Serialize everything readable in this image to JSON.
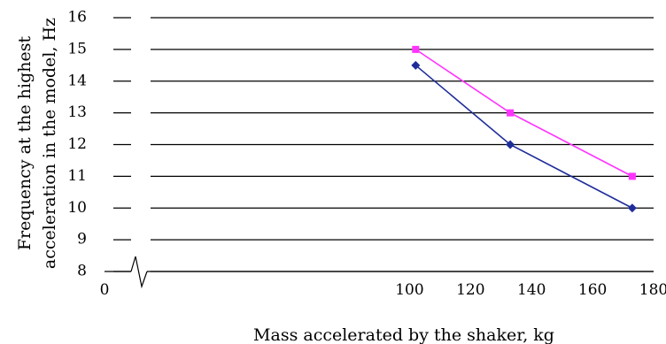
{
  "chart_data": {
    "type": "line",
    "title": "",
    "xlabel": "Mass accelerated by the shaker, kg",
    "ylabel_line1": "Frequency at the highest",
    "ylabel_line2": "acceleration in the model, Hz",
    "xlim": [
      0,
      180
    ],
    "ylim": [
      8,
      16
    ],
    "x_ticks": [
      0,
      100,
      120,
      140,
      160,
      180
    ],
    "y_ticks": [
      8,
      9,
      10,
      11,
      12,
      13,
      14,
      15,
      16
    ],
    "x_tick_labels": [
      "0",
      "100",
      "120",
      "140",
      "160",
      "180"
    ],
    "y_tick_labels": [
      "8",
      "9",
      "10",
      "11",
      "12",
      "13",
      "14",
      "15",
      "16"
    ],
    "x_axis_break": true,
    "grid": "horizontal",
    "legend": "none",
    "series": [
      {
        "color": "#ff33ff",
        "marker": "square",
        "x": [
          102,
          133,
          173
        ],
        "y": [
          15,
          13,
          11
        ]
      },
      {
        "color": "#1f2d99",
        "marker": "diamond",
        "x": [
          102,
          133,
          173
        ],
        "y": [
          14.5,
          12,
          10
        ]
      }
    ]
  }
}
